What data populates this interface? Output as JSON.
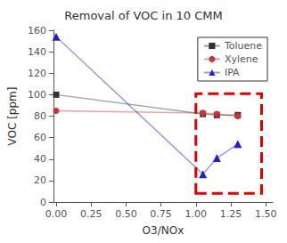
{
  "chart_data": {
    "type": "line",
    "title": "Removal of VOC in 10 CMM",
    "xlabel": "O3/NOx",
    "ylabel": "VOC [ppm]",
    "x": [
      0.0,
      1.05,
      1.15,
      1.3
    ],
    "series": [
      {
        "name": "Toluene",
        "color": "#333333",
        "marker": "square",
        "values": [
          100,
          82,
          81,
          81
        ]
      },
      {
        "name": "Xylene",
        "color": "#cc3333",
        "marker": "circle",
        "values": [
          85,
          83,
          82,
          80
        ]
      },
      {
        "name": "IPA",
        "color": "#2222cc",
        "marker": "triangle",
        "values": [
          154,
          26,
          41,
          54
        ]
      }
    ],
    "highlight": {
      "x": 1.0,
      "y": 8,
      "width": 0.47,
      "height": 93,
      "color": "#dd0000",
      "line_style": "dashed"
    },
    "xlim": [
      -0.02,
      1.55
    ],
    "xticks": [
      {
        "value": 0,
        "label": "0.00"
      },
      {
        "value": 0.25,
        "label": "0.25"
      },
      {
        "value": 0.5,
        "label": "0.50"
      },
      {
        "value": 0.75,
        "label": "0.75"
      },
      {
        "value": 1,
        "label": "1.00"
      },
      {
        "value": 1.25,
        "label": "1.25"
      },
      {
        "value": 1.5,
        "label": "1.50"
      }
    ],
    "ylim": [
      0,
      160
    ],
    "yticks": [
      0,
      20,
      40,
      60,
      80,
      100,
      120,
      140,
      160
    ],
    "grid": false,
    "legend": "upper right"
  }
}
